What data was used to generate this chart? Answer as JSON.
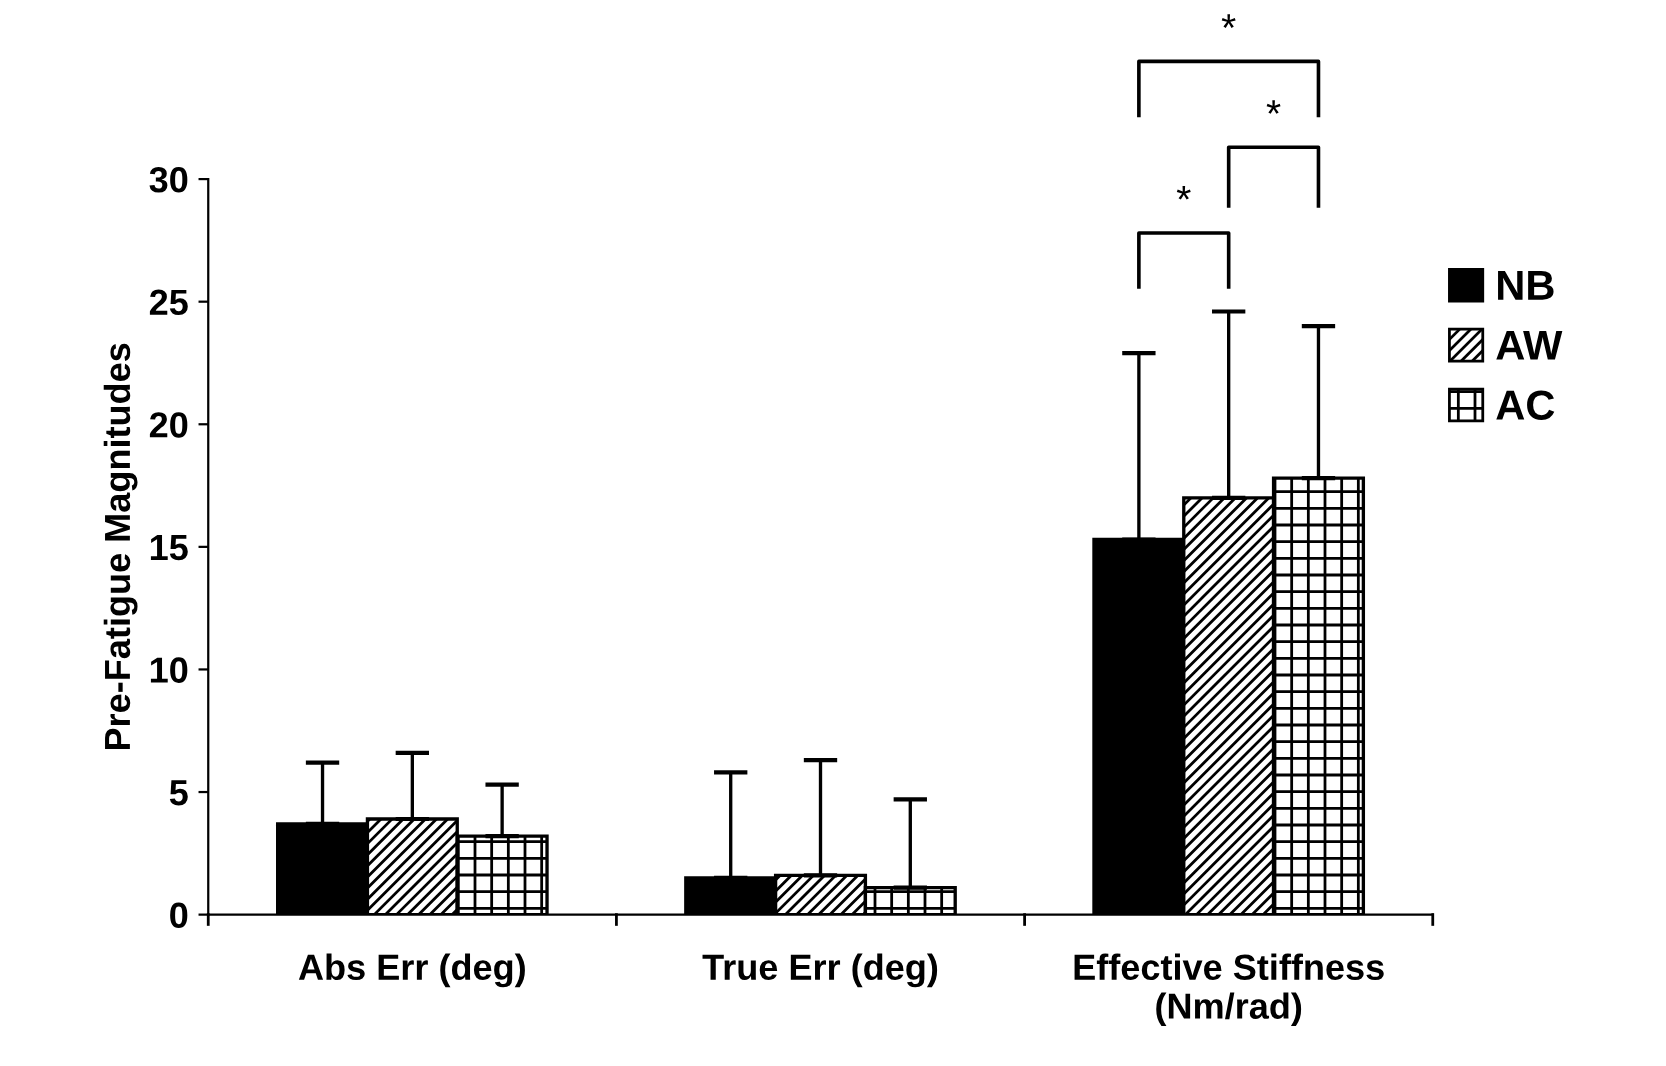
{
  "chart_data": {
    "type": "bar",
    "ylabel": "Pre-Fatigue Magnitudes",
    "categories": [
      "Abs Err (deg)",
      "True Err (deg)",
      "Effective Stiffness\n(Nm/rad)"
    ],
    "series": [
      {
        "name": "NB",
        "color": "#000000",
        "values": [
          3.7,
          1.5,
          15.3
        ],
        "errors": [
          [
            3.7,
            6.2
          ],
          [
            1.5,
            5.8
          ],
          [
            15.3,
            22.9
          ]
        ]
      },
      {
        "name": "AW",
        "color": "#000000",
        "values": [
          3.9,
          1.6,
          17.0
        ],
        "errors": [
          [
            3.9,
            6.6
          ],
          [
            1.6,
            6.3
          ],
          [
            17.0,
            24.6
          ]
        ]
      },
      {
        "name": "AC",
        "color": "#000000",
        "values": [
          3.2,
          1.1,
          17.8
        ],
        "errors": [
          [
            3.2,
            5.3
          ],
          [
            1.1,
            4.7
          ],
          [
            17.8,
            24.0
          ]
        ]
      }
    ],
    "ylim": [
      0,
      30
    ],
    "yticks": [
      0,
      5,
      10,
      15,
      20,
      25,
      30
    ],
    "grid": false,
    "legend": "top right",
    "annotations": [
      "*",
      "*",
      "*"
    ]
  }
}
